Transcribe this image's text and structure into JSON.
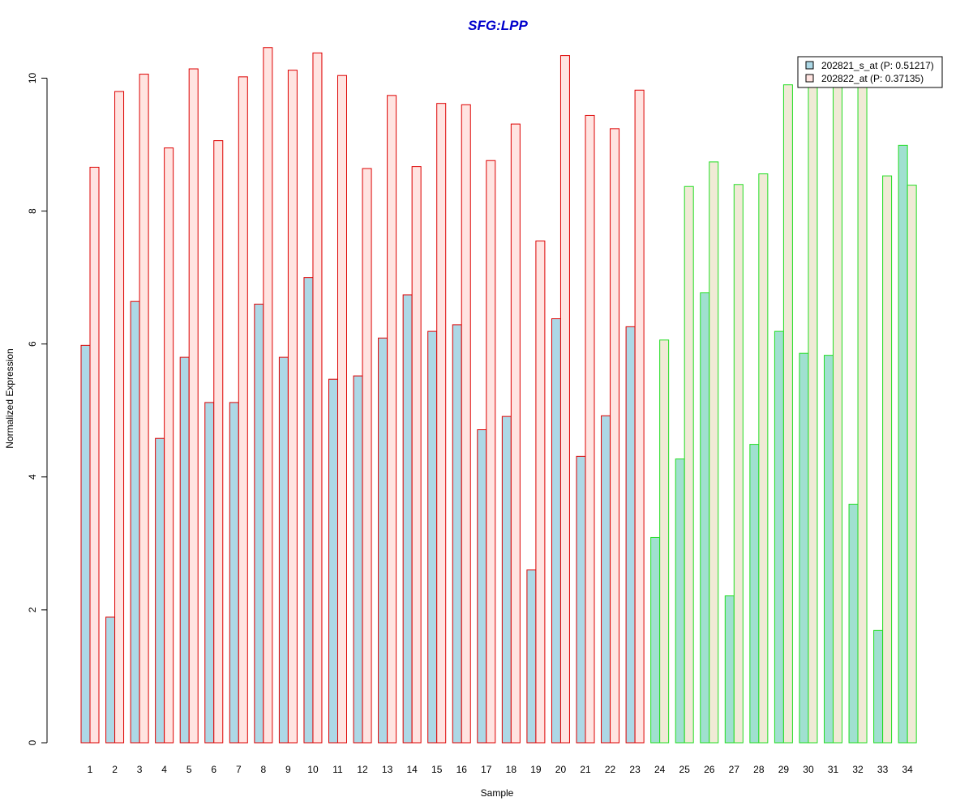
{
  "chart_data": {
    "type": "bar",
    "title": "SFG:LPP",
    "xlabel": "Sample",
    "ylabel": "Normalized Expression",
    "ylim": [
      0,
      10.5
    ],
    "yticks": [
      0,
      2,
      4,
      6,
      8,
      10
    ],
    "grid": false,
    "legend_position": "top-right",
    "categories": [
      "1",
      "2",
      "3",
      "4",
      "5",
      "6",
      "7",
      "8",
      "9",
      "10",
      "11",
      "12",
      "13",
      "14",
      "15",
      "16",
      "17",
      "18",
      "19",
      "20",
      "21",
      "22",
      "23",
      "24",
      "25",
      "26",
      "27",
      "28",
      "29",
      "30",
      "31",
      "32",
      "33",
      "34"
    ],
    "series": [
      {
        "name": "202821_s_at (P: 0.51217)",
        "values": [
          5.98,
          1.89,
          6.64,
          4.58,
          5.8,
          5.12,
          5.12,
          6.6,
          5.8,
          7.0,
          5.47,
          5.52,
          6.09,
          6.74,
          6.19,
          6.29,
          4.71,
          4.91,
          2.6,
          6.38,
          4.31,
          4.92,
          6.26,
          3.09,
          4.27,
          6.77,
          2.21,
          4.49,
          6.19,
          5.86,
          5.83,
          3.59,
          1.69,
          8.99
        ]
      },
      {
        "name": "202822_at (P: 0.37135)",
        "values": [
          8.66,
          9.8,
          10.06,
          8.95,
          10.14,
          9.06,
          10.02,
          10.46,
          10.12,
          10.38,
          10.04,
          8.64,
          9.74,
          8.67,
          9.62,
          9.6,
          8.76,
          9.31,
          7.55,
          10.34,
          9.44,
          9.24,
          9.82,
          6.06,
          8.37,
          8.74,
          8.4,
          8.56,
          9.9,
          9.9,
          9.9,
          9.9,
          8.53,
          8.39
        ]
      }
    ],
    "groups": [
      {
        "from": 1,
        "to": 23,
        "fill_a": "#add8e6",
        "fill_b": "#ffe4e1",
        "border": "#dd0000"
      },
      {
        "from": 24,
        "to": 34,
        "fill_a": "#a0e0d0",
        "fill_b": "#f0ead6",
        "border": "#22dd22"
      }
    ],
    "legend_colors": [
      "#add8e6",
      "#ffe4e1"
    ]
  }
}
